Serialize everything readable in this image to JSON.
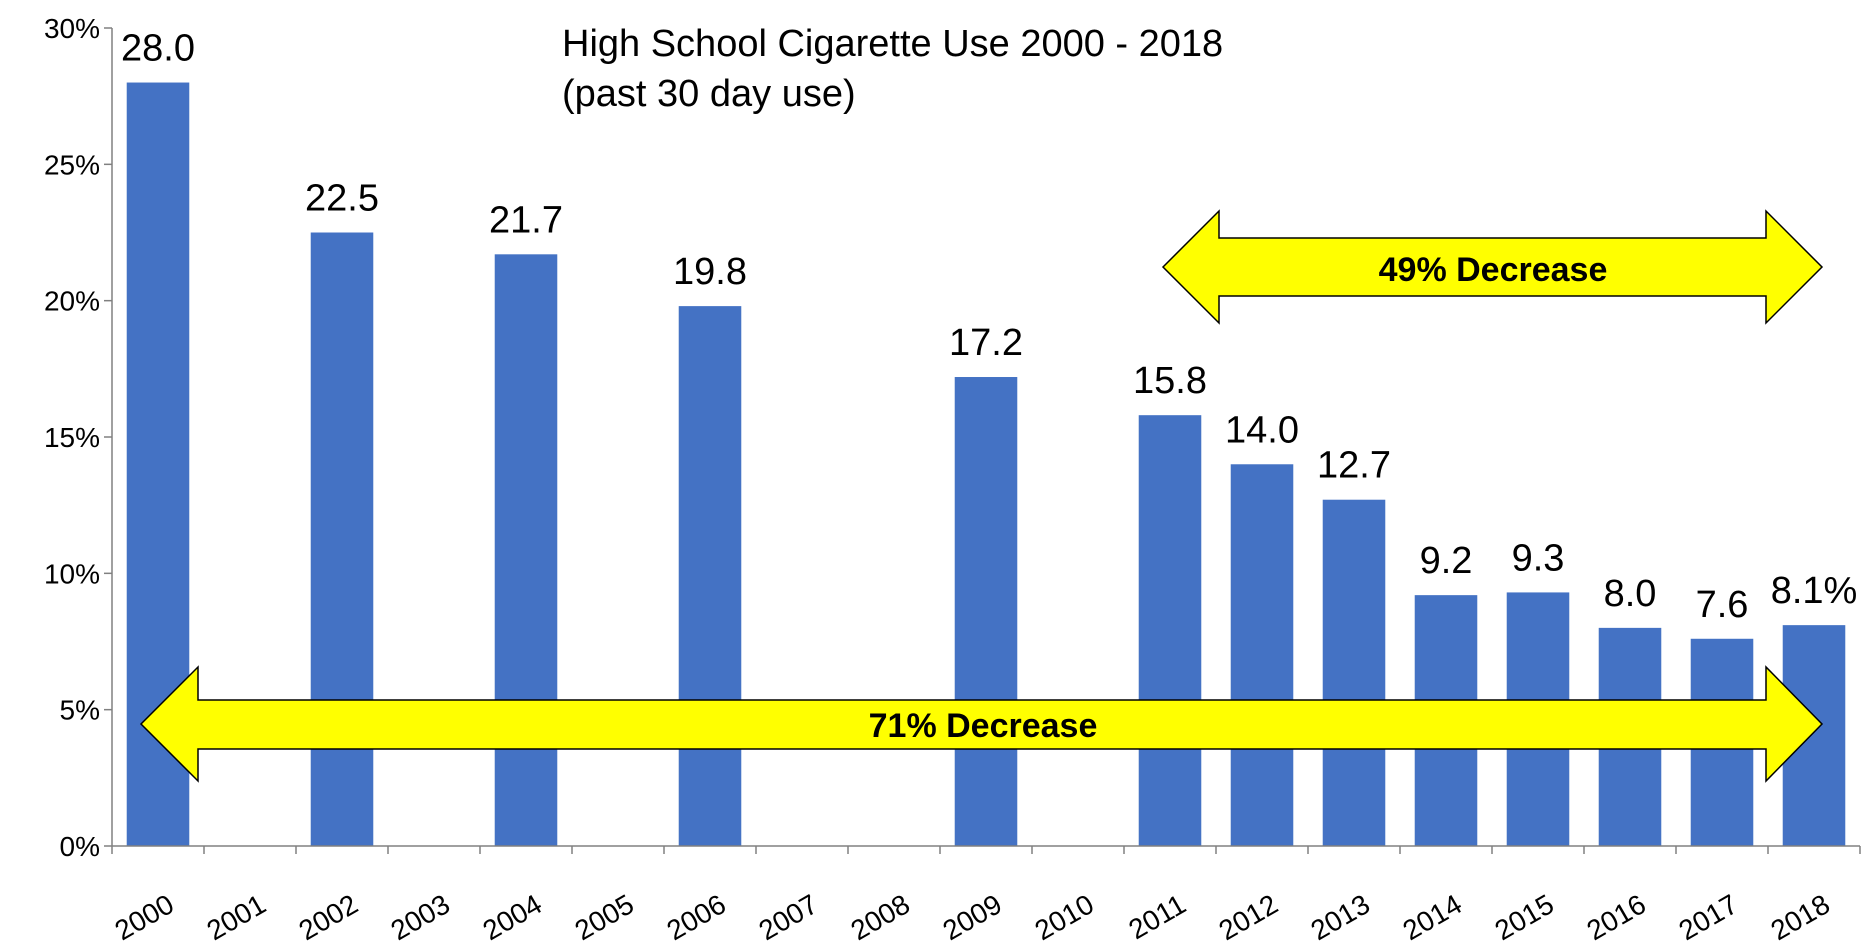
{
  "chart_data": {
    "type": "bar",
    "title": "High School Cigarette Use 2000 - 2018",
    "subtitle": "(past 30 day use)",
    "categories": [
      "2000",
      "2001",
      "2002",
      "2003",
      "2004",
      "2005",
      "2006",
      "2007",
      "2008",
      "2009",
      "2010",
      "2011",
      "2012",
      "2013",
      "2014",
      "2015",
      "2016",
      "2017",
      "2018"
    ],
    "values": [
      28.0,
      null,
      22.5,
      null,
      21.7,
      null,
      19.8,
      null,
      null,
      17.2,
      null,
      15.8,
      14.0,
      12.7,
      9.2,
      9.3,
      8.0,
      7.6,
      8.1
    ],
    "data_labels": [
      "28.0",
      "",
      "22.5",
      "",
      "21.7",
      "",
      "19.8",
      "",
      "",
      "17.2",
      "",
      "15.8",
      "14.0",
      "12.7",
      "9.2",
      "9.3",
      "8.0",
      "7.6",
      "8.1%"
    ],
    "y_ticks": [
      "0%",
      "5%",
      "10%",
      "15%",
      "20%",
      "25%",
      "30%"
    ],
    "y_tick_values": [
      0,
      5,
      10,
      15,
      20,
      25,
      30
    ],
    "ylim": [
      0,
      30
    ],
    "xlabel": "",
    "ylabel": "",
    "grid": false,
    "bar_color": "#4472C4",
    "annotations": [
      {
        "text": "49% Decrease",
        "from": "2011",
        "to": "2018",
        "color": "#FFFF00"
      },
      {
        "text": "71% Decrease",
        "from": "2000",
        "to": "2018",
        "color": "#FFFF00"
      }
    ]
  }
}
